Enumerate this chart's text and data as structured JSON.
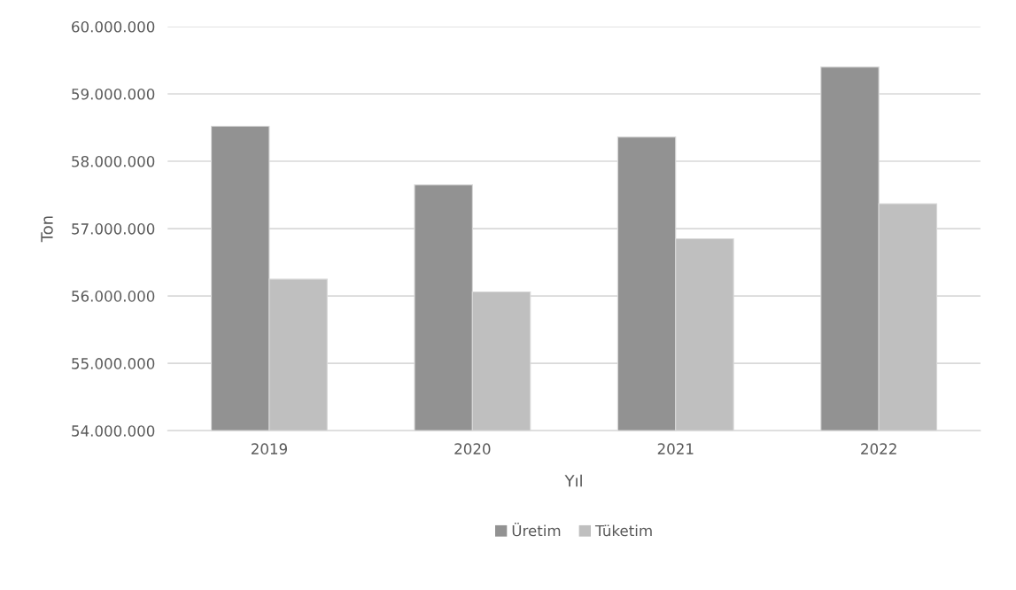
{
  "chart_data": {
    "type": "bar",
    "xlabel": "Yıl",
    "ylabel": "Ton",
    "categories": [
      "2019",
      "2020",
      "2021",
      "2022"
    ],
    "series": [
      {
        "name": "Üretim",
        "color": "#929292",
        "values": [
          58520000,
          57650000,
          58360000,
          59400000
        ]
      },
      {
        "name": "Tüketim",
        "color": "#bfbfbf",
        "values": [
          56250000,
          56060000,
          56850000,
          57370000
        ]
      }
    ],
    "ylim": [
      54000000,
      60000000
    ],
    "yticks": [
      {
        "value": 54000000,
        "label": "54.000.000"
      },
      {
        "value": 55000000,
        "label": "55.000.000"
      },
      {
        "value": 56000000,
        "label": "56.000.000"
      },
      {
        "value": 57000000,
        "label": "57.000.000"
      },
      {
        "value": 58000000,
        "label": "58.000.000"
      },
      {
        "value": 59000000,
        "label": "59.000.000"
      },
      {
        "value": 60000000,
        "label": "60.000.000"
      }
    ],
    "grid": "y",
    "legend": "bottom"
  }
}
